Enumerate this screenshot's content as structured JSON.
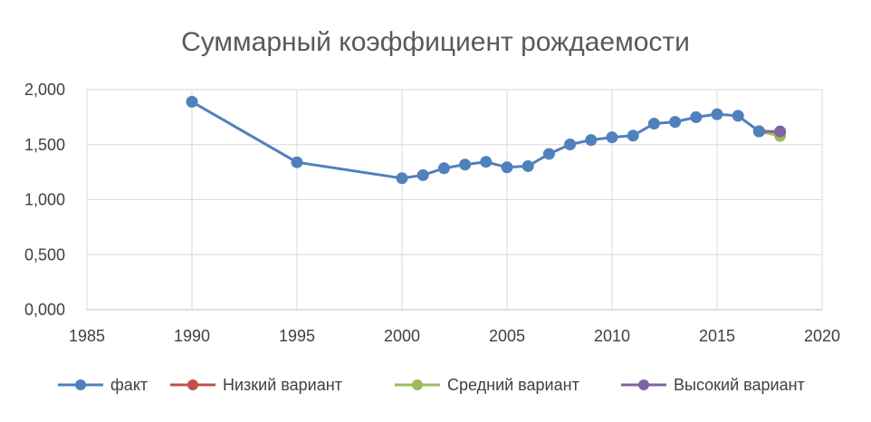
{
  "chart_data": {
    "type": "line",
    "title": "Суммарный коэффициент рождаемости",
    "xlabel": "",
    "ylabel": "",
    "xlim": [
      1985,
      2020
    ],
    "ylim": [
      0,
      2
    ],
    "x_ticks": [
      "1985",
      "1990",
      "1995",
      "2000",
      "2005",
      "2010",
      "2015",
      "2020"
    ],
    "x_tick_values": [
      1985,
      1990,
      1995,
      2000,
      2005,
      2010,
      2015,
      2020
    ],
    "y_ticks": [
      "0,000",
      "0,500",
      "1,000",
      "1,500",
      "2,000"
    ],
    "y_tick_values": [
      0,
      0.5,
      1.0,
      1.5,
      2.0
    ],
    "grid": true,
    "legend_position": "bottom",
    "series": [
      {
        "name": "факт",
        "color": "#4f81bd",
        "points": [
          [
            1990,
            1.89
          ],
          [
            1995,
            1.34
          ],
          [
            2000,
            1.195
          ],
          [
            2001,
            1.223
          ],
          [
            2002,
            1.286
          ],
          [
            2003,
            1.319
          ],
          [
            2004,
            1.344
          ],
          [
            2005,
            1.294
          ],
          [
            2006,
            1.305
          ],
          [
            2007,
            1.416
          ],
          [
            2008,
            1.502
          ],
          [
            2009,
            1.542
          ],
          [
            2010,
            1.567
          ],
          [
            2011,
            1.582
          ],
          [
            2012,
            1.691
          ],
          [
            2013,
            1.707
          ],
          [
            2014,
            1.75
          ],
          [
            2015,
            1.777
          ],
          [
            2016,
            1.762
          ],
          [
            2017,
            1.621
          ]
        ]
      },
      {
        "name": "Низкий вариант",
        "color": "#c0504d",
        "points": [
          [
            2017,
            1.621
          ],
          [
            2018,
            1.61
          ]
        ]
      },
      {
        "name": "Средний вариант",
        "color": "#9bbb59",
        "points": [
          [
            2017,
            1.621
          ],
          [
            2018,
            1.58
          ]
        ]
      },
      {
        "name": "Высокий вариант",
        "color": "#8064a2",
        "points": [
          [
            2017,
            1.621
          ],
          [
            2018,
            1.62
          ]
        ]
      }
    ]
  }
}
